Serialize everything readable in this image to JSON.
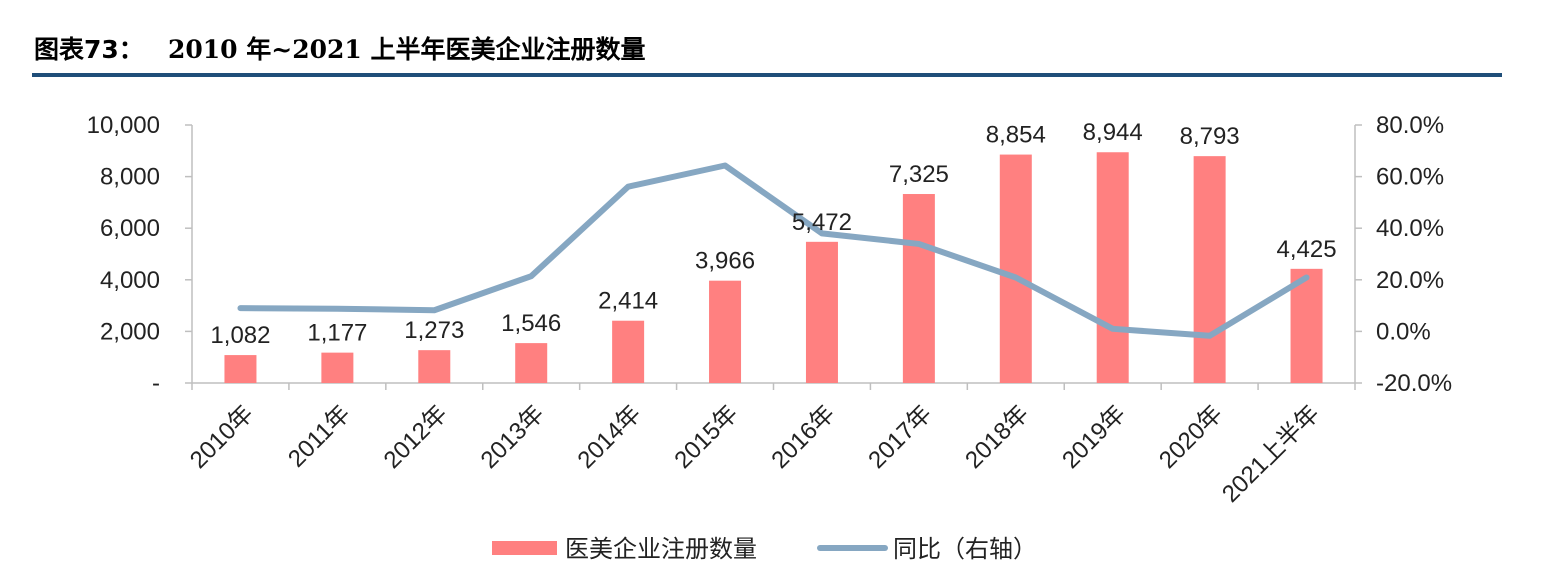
{
  "header": {
    "title_prefix": "图表73：",
    "title_text": "2010 年~2021 上半年医美企业注册数量"
  },
  "chart_data": {
    "type": "bar",
    "categories": [
      "2010年",
      "2011年",
      "2012年",
      "2013年",
      "2014年",
      "2015年",
      "2016年",
      "2017年",
      "2018年",
      "2019年",
      "2020年",
      "2021上半年"
    ],
    "series": [
      {
        "name": "医美企业注册数量",
        "type": "bar",
        "axis": "left",
        "color": "#ff8080",
        "values": [
          1082,
          1177,
          1273,
          1546,
          2414,
          3966,
          5472,
          7325,
          8854,
          8944,
          8793,
          4425
        ],
        "labels": [
          "1,082",
          "1,177",
          "1,273",
          "1,546",
          "2,414",
          "3,966",
          "5,472",
          "7,325",
          "8,854",
          "8,944",
          "8,793",
          "4,425"
        ]
      },
      {
        "name": "同比（右轴）",
        "type": "line",
        "axis": "right",
        "color": "#86a7c2",
        "values": [
          9.0,
          8.8,
          8.2,
          21.4,
          56.1,
          64.3,
          38.0,
          33.9,
          20.9,
          1.0,
          -1.7,
          20.9
        ]
      }
    ],
    "y_left": {
      "ylim": [
        0,
        10000
      ],
      "ticks": [
        0,
        2000,
        4000,
        6000,
        8000,
        10000
      ],
      "tick_labels": [
        "-",
        "2,000",
        "4,000",
        "6,000",
        "8,000",
        "10,000"
      ]
    },
    "y_right": {
      "ylim": [
        -20,
        80
      ],
      "ticks": [
        -20,
        0,
        20,
        40,
        60,
        80
      ],
      "tick_labels": [
        "-20.0%",
        "0.0%",
        "20.0%",
        "40.0%",
        "60.0%",
        "80.0%"
      ]
    },
    "grid": false,
    "legend_position": "bottom"
  }
}
